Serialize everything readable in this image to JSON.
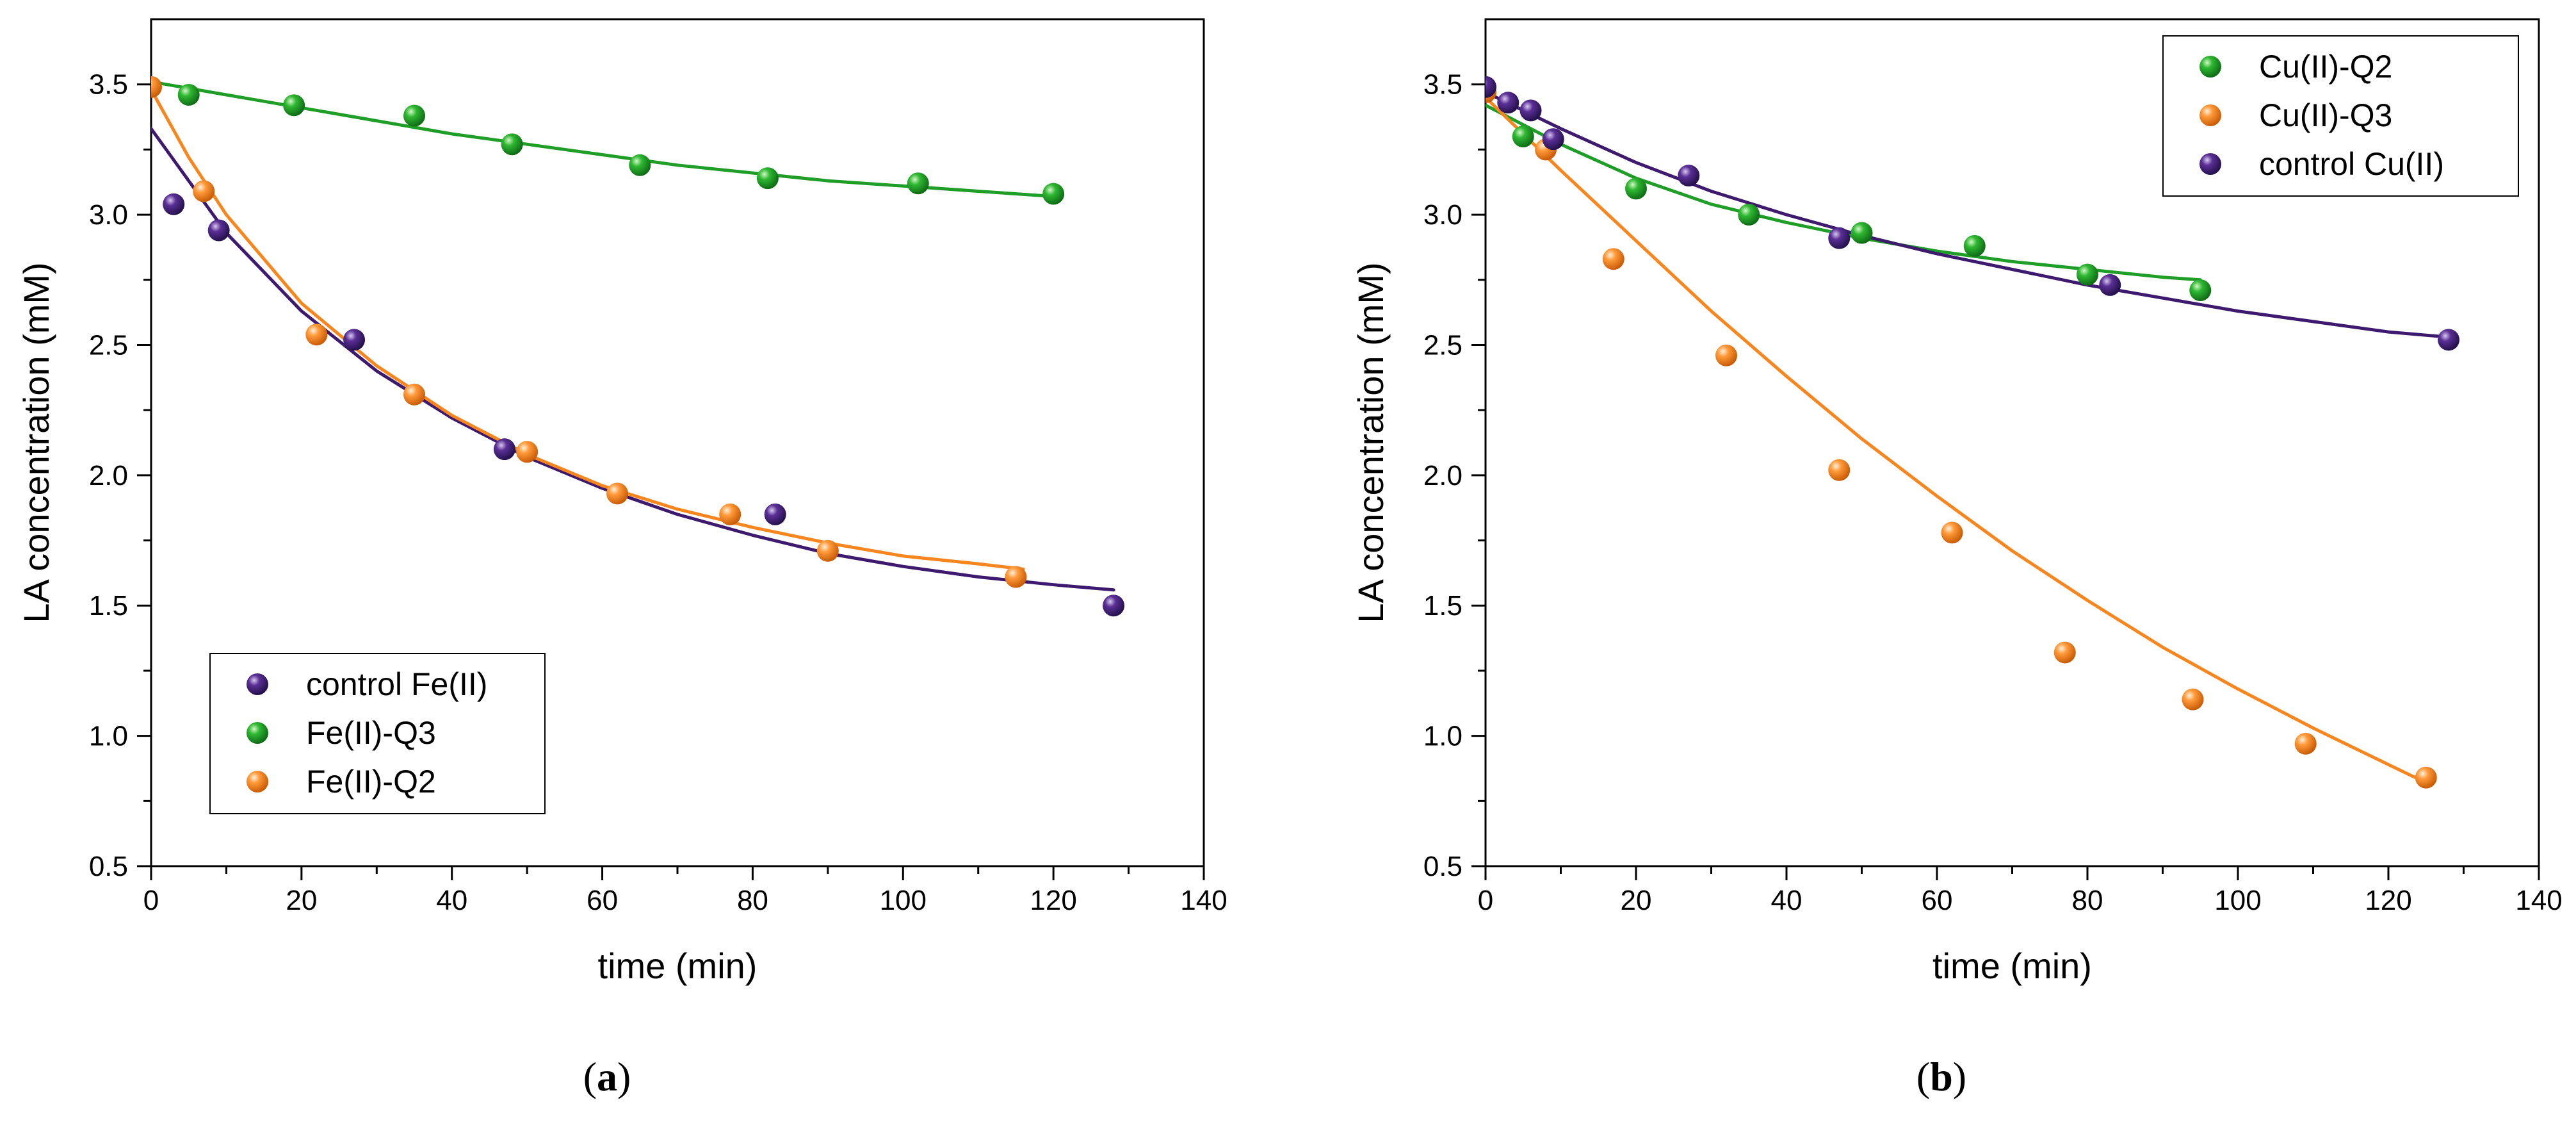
{
  "figure": {
    "panel_labels": [
      "(a)",
      "(b)"
    ]
  },
  "chart_data": [
    {
      "type": "scatter",
      "panel": "a",
      "title": "",
      "xlabel": "time (min)",
      "ylabel": "LA concentration (mM)",
      "xlim": [
        0,
        140
      ],
      "ylim": [
        0.5,
        3.75
      ],
      "xticks": [
        0,
        20,
        40,
        60,
        80,
        100,
        120,
        140
      ],
      "yticks": [
        0.5,
        1.0,
        1.5,
        2.0,
        2.5,
        3.0,
        3.5
      ],
      "ytick_labels": [
        "0.5",
        "1.0",
        "1.5",
        "2.0",
        "2.5",
        "3.0",
        "3.5"
      ],
      "legend_position": "bottom-left",
      "series": [
        {
          "name": "control Fe(II)",
          "color": "#3d1a6e",
          "x": [
            3,
            9,
            27,
            47,
            83,
            128
          ],
          "y": [
            3.04,
            2.94,
            2.52,
            2.1,
            1.85,
            1.5
          ],
          "fit": {
            "x": [
              0,
              10,
              20,
              30,
              40,
              50,
              60,
              70,
              80,
              90,
              100,
              110,
              120,
              128
            ],
            "y": [
              3.33,
              2.93,
              2.63,
              2.4,
              2.22,
              2.07,
              1.95,
              1.85,
              1.77,
              1.7,
              1.65,
              1.61,
              1.58,
              1.56
            ]
          }
        },
        {
          "name": "Fe(II)-Q3",
          "color": "#1e9e26",
          "x": [
            5,
            19,
            35,
            48,
            65,
            82,
            102,
            120
          ],
          "y": [
            3.46,
            3.42,
            3.38,
            3.27,
            3.19,
            3.14,
            3.12,
            3.08
          ],
          "fit": {
            "x": [
              0,
              10,
              20,
              30,
              40,
              50,
              60,
              70,
              80,
              90,
              100,
              110,
              120
            ],
            "y": [
              3.51,
              3.46,
              3.41,
              3.36,
              3.31,
              3.27,
              3.23,
              3.19,
              3.16,
              3.13,
              3.11,
              3.09,
              3.07
            ]
          }
        },
        {
          "name": "Fe(II)-Q2",
          "color": "#f7861e",
          "x": [
            0,
            7,
            22,
            35,
            50,
            62,
            77,
            90,
            115
          ],
          "y": [
            3.49,
            3.09,
            2.54,
            2.31,
            2.09,
            1.93,
            1.85,
            1.71,
            1.61
          ],
          "fit": {
            "x": [
              0,
              5,
              10,
              20,
              30,
              40,
              50,
              60,
              70,
              80,
              90,
              100,
              110,
              116
            ],
            "y": [
              3.48,
              3.22,
              3.0,
              2.66,
              2.42,
              2.23,
              2.08,
              1.96,
              1.87,
              1.8,
              1.74,
              1.69,
              1.66,
              1.64
            ]
          }
        }
      ]
    },
    {
      "type": "scatter",
      "panel": "b",
      "title": "",
      "xlabel": "time (min)",
      "ylabel": "LA concentration (mM)",
      "xlim": [
        0,
        140
      ],
      "ylim": [
        0.5,
        3.75
      ],
      "xticks": [
        0,
        20,
        40,
        60,
        80,
        100,
        120,
        140
      ],
      "yticks": [
        0.5,
        1.0,
        1.5,
        2.0,
        2.5,
        3.0,
        3.5
      ],
      "ytick_labels": [
        "0.5",
        "1.0",
        "1.5",
        "2.0",
        "2.5",
        "3.0",
        "3.5"
      ],
      "legend_position": "top-right",
      "series": [
        {
          "name": "Cu(II)-Q2",
          "color": "#1e9e26",
          "x": [
            5,
            20,
            35,
            50,
            65,
            80,
            95
          ],
          "y": [
            3.3,
            3.1,
            3.0,
            2.93,
            2.88,
            2.77,
            2.71
          ],
          "fit": {
            "x": [
              0,
              10,
              20,
              30,
              40,
              50,
              60,
              70,
              80,
              90,
              95
            ],
            "y": [
              3.42,
              3.27,
              3.14,
              3.04,
              2.97,
              2.91,
              2.86,
              2.82,
              2.79,
              2.76,
              2.75
            ]
          }
        },
        {
          "name": "Cu(II)-Q3",
          "color": "#f7861e",
          "x": [
            0,
            8,
            17,
            32,
            47,
            62,
            77,
            94,
            109,
            125
          ],
          "y": [
            3.47,
            3.25,
            2.83,
            2.46,
            2.02,
            1.78,
            1.32,
            1.14,
            0.97,
            0.84
          ],
          "fit": {
            "x": [
              0,
              10,
              20,
              30,
              40,
              50,
              60,
              70,
              80,
              90,
              100,
              110,
              120,
              125
            ],
            "y": [
              3.45,
              3.17,
              2.9,
              2.63,
              2.38,
              2.14,
              1.92,
              1.71,
              1.52,
              1.34,
              1.18,
              1.03,
              0.89,
              0.82
            ]
          }
        },
        {
          "name": "control Cu(II)",
          "color": "#3d1a6e",
          "x": [
            0,
            3,
            6,
            9,
            27,
            47,
            83,
            128
          ],
          "y": [
            3.49,
            3.43,
            3.4,
            3.29,
            3.15,
            2.91,
            2.73,
            2.52
          ],
          "fit": {
            "x": [
              0,
              10,
              20,
              30,
              40,
              50,
              60,
              70,
              80,
              90,
              100,
              110,
              120,
              128
            ],
            "y": [
              3.47,
              3.33,
              3.2,
              3.09,
              3.0,
              2.92,
              2.85,
              2.79,
              2.73,
              2.68,
              2.63,
              2.59,
              2.55,
              2.53
            ]
          }
        }
      ]
    }
  ]
}
